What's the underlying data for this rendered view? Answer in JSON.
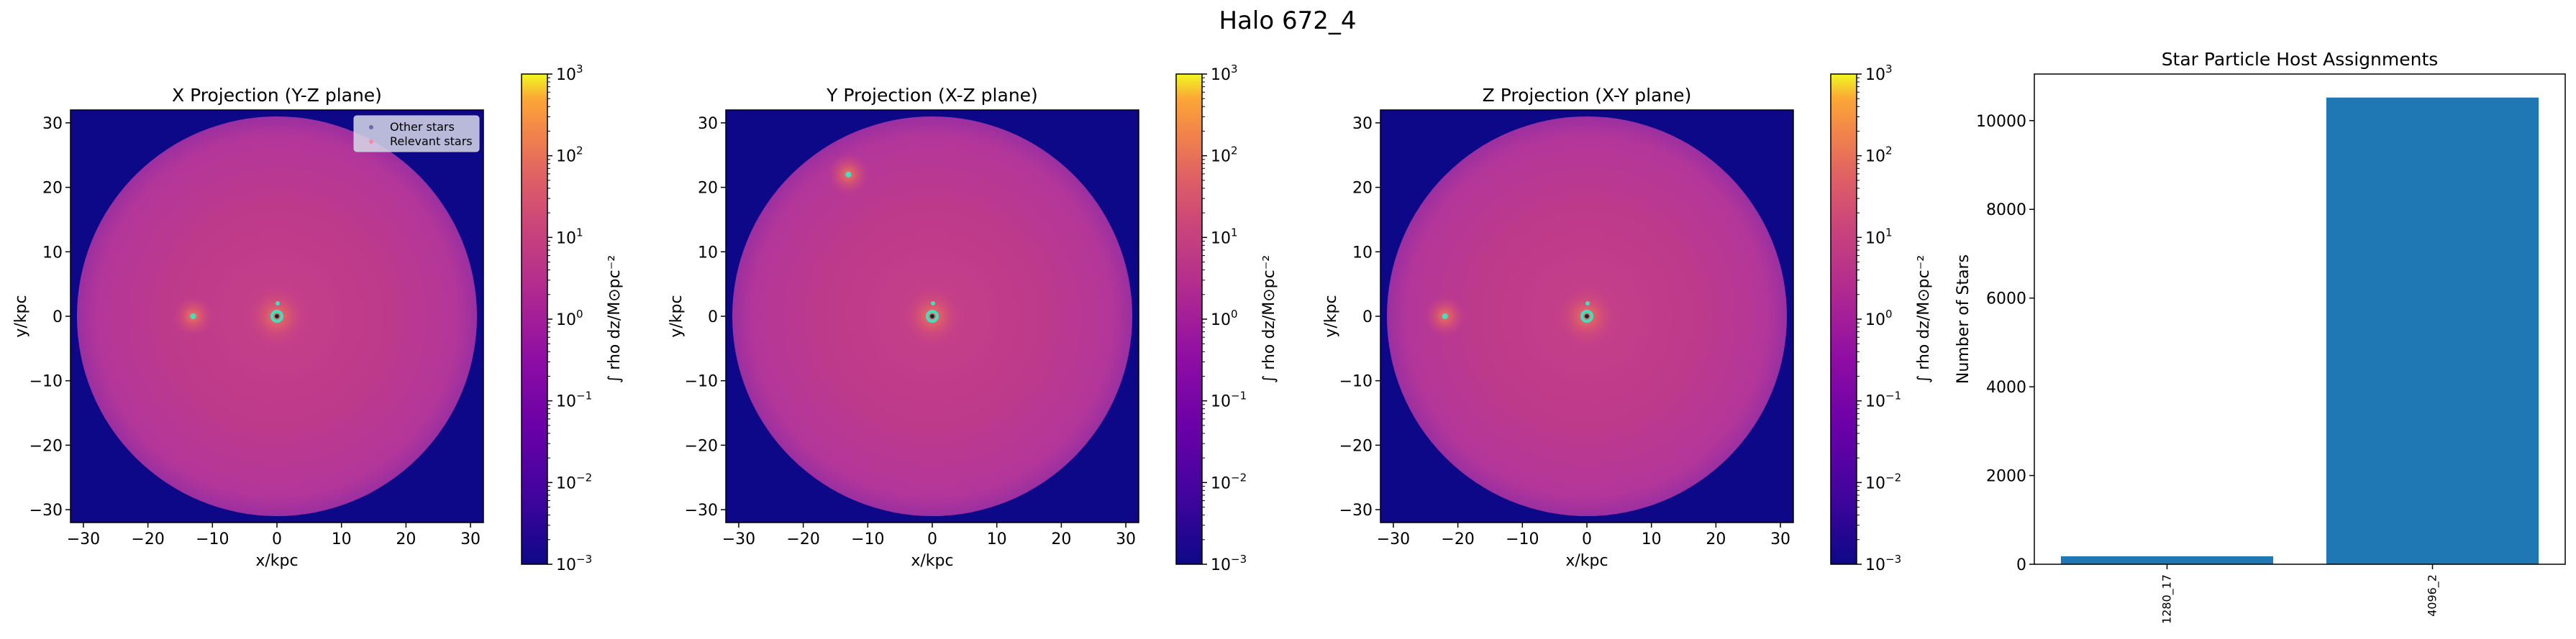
{
  "figure_title": "Halo 672_4",
  "colors": {
    "bg_outside": "#0d0887",
    "disk_center": "#c13d85",
    "disk_edge": "#a9329c",
    "star_marker": "#40e0c0",
    "bar": "#1f77b4"
  },
  "panels": [
    {
      "title": "X Projection (Y-Z plane)",
      "xlabel": "x/kpc",
      "ylabel": "y/kpc",
      "colorbar_label": "∫ rho dz/M⊙pc⁻²",
      "legend": [
        {
          "label": "Other stars"
        },
        {
          "label": "Relevant stars"
        }
      ],
      "features": [
        {
          "x": 0,
          "y": 0,
          "kind": "cluster"
        },
        {
          "x": -13,
          "y": 0,
          "kind": "knot"
        }
      ]
    },
    {
      "title": "Y Projection (X-Z plane)",
      "xlabel": "x/kpc",
      "ylabel": "y/kpc",
      "colorbar_label": "∫ rho dz/M⊙pc⁻²",
      "features": [
        {
          "x": 0,
          "y": 0,
          "kind": "cluster"
        },
        {
          "x": -13,
          "y": 22,
          "kind": "knot"
        }
      ]
    },
    {
      "title": "Z Projection (X-Y plane)",
      "xlabel": "x/kpc",
      "ylabel": "y/kpc",
      "colorbar_label": "∫ rho dz/M⊙pc⁻²",
      "features": [
        {
          "x": 0,
          "y": 0,
          "kind": "cluster"
        },
        {
          "x": -22,
          "y": 0,
          "kind": "knot"
        }
      ]
    }
  ],
  "map_axes": {
    "xlim": [
      -32,
      32
    ],
    "ylim": [
      -32,
      32
    ],
    "ticks": [
      -30,
      -20,
      -10,
      0,
      10,
      20,
      30
    ],
    "tick_labels": [
      "−30",
      "−20",
      "−10",
      "0",
      "10",
      "20",
      "30"
    ],
    "disk_radius": 31
  },
  "colorbar": {
    "scale": "log",
    "range": [
      0.001,
      1000
    ],
    "colormap": "plasma",
    "ticks": [
      {
        "base": "10",
        "exp": "3"
      },
      {
        "base": "10",
        "exp": "2"
      },
      {
        "base": "10",
        "exp": "1"
      },
      {
        "base": "10",
        "exp": "0"
      },
      {
        "base": "10",
        "exp": "−1"
      },
      {
        "base": "10",
        "exp": "−2"
      },
      {
        "base": "10",
        "exp": "−3"
      }
    ]
  },
  "chart_data": {
    "type": "bar",
    "title": "Star Particle Host Assignments",
    "categories": [
      "1280_17",
      "4096_2"
    ],
    "values": [
      180,
      10520
    ],
    "xlabel": "",
    "ylabel": "Number of Stars",
    "ylim": [
      0,
      11050
    ],
    "yticks": [
      0,
      2000,
      4000,
      6000,
      8000,
      10000
    ]
  }
}
